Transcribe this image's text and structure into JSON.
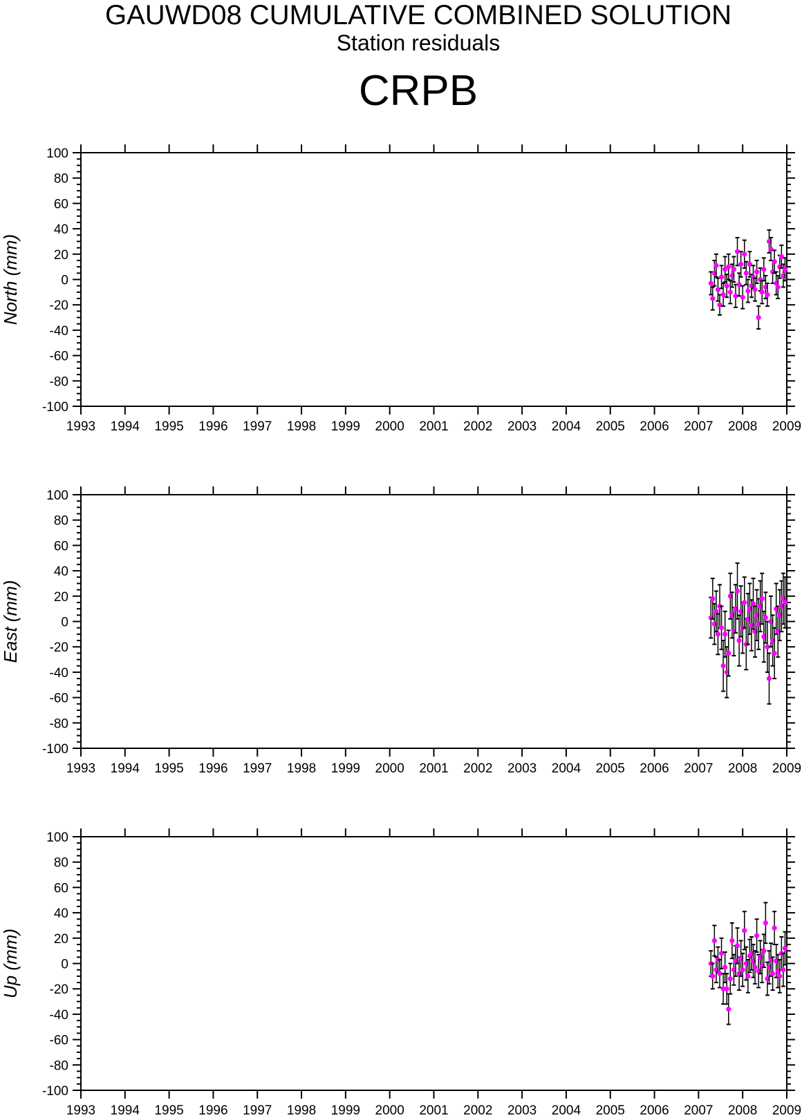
{
  "header": {
    "title": "GAUWD08 CUMULATIVE COMBINED SOLUTION",
    "subtitle": "Station residuals",
    "station": "CRPB"
  },
  "colors": {
    "point": "#ff00ff",
    "errorbar": "#000000",
    "axis": "#000000"
  },
  "chart_data": [
    {
      "type": "scatter",
      "ylabel": "North (mm)",
      "ylim": [
        -100,
        100
      ],
      "xlim": [
        1993,
        2009
      ],
      "xticks": [
        "1993",
        "1994",
        "1995",
        "1996",
        "1997",
        "1998",
        "1999",
        "2000",
        "2001",
        "2002",
        "2003",
        "2004",
        "2005",
        "2006",
        "2007",
        "2008",
        "2009"
      ],
      "yticks": [
        "100",
        "80",
        "60",
        "40",
        "20",
        "0",
        "-20",
        "-40",
        "-60",
        "-80",
        "-100"
      ],
      "grid": false,
      "series": [
        {
          "x": [
            2007.28,
            2007.32,
            2007.36,
            2007.4,
            2007.44,
            2007.48,
            2007.52,
            2007.56,
            2007.6,
            2007.64,
            2007.68,
            2007.72,
            2007.76,
            2007.8,
            2007.84,
            2007.88,
            2007.92,
            2007.96,
            2008.0,
            2008.04,
            2008.08,
            2008.12,
            2008.16,
            2008.2,
            2008.24,
            2008.28,
            2008.32,
            2008.36,
            2008.4,
            2008.44,
            2008.48,
            2008.52,
            2008.56,
            2008.6,
            2008.64,
            2008.68,
            2008.72,
            2008.76,
            2008.8,
            2008.84,
            2008.88,
            2008.92,
            2008.96
          ],
          "y": [
            -3,
            -15,
            5,
            11,
            -8,
            -20,
            2,
            -12,
            8,
            -5,
            10,
            -10,
            3,
            8,
            -13,
            22,
            -4,
            12,
            -14,
            20,
            5,
            -9,
            12,
            -5,
            2,
            -8,
            6,
            -30,
            0,
            -10,
            8,
            -6,
            -12,
            30,
            24,
            6,
            14,
            -3,
            -6,
            10,
            18,
            3,
            8
          ],
          "err": [
            9,
            9,
            10,
            9,
            9,
            8,
            9,
            9,
            10,
            9,
            10,
            9,
            9,
            10,
            9,
            11,
            9,
            10,
            9,
            11,
            9,
            9,
            10,
            9,
            9,
            9,
            9,
            9,
            9,
            9,
            9,
            9,
            9,
            9,
            9,
            9,
            9,
            9,
            9,
            9,
            9,
            9,
            9
          ]
        }
      ]
    },
    {
      "type": "scatter",
      "ylabel": "East (mm)",
      "ylim": [
        -100,
        100
      ],
      "xlim": [
        1993,
        2009
      ],
      "xticks": [
        "1993",
        "1994",
        "1995",
        "1996",
        "1997",
        "1998",
        "1999",
        "2000",
        "2001",
        "2002",
        "2003",
        "2004",
        "2005",
        "2006",
        "2007",
        "2008",
        "2009"
      ],
      "yticks": [
        "100",
        "80",
        "60",
        "40",
        "20",
        "0",
        "-20",
        "-40",
        "-60",
        "-80",
        "-100"
      ],
      "grid": false,
      "series": [
        {
          "x": [
            2007.28,
            2007.32,
            2007.36,
            2007.4,
            2007.44,
            2007.48,
            2007.52,
            2007.56,
            2007.6,
            2007.64,
            2007.68,
            2007.72,
            2007.76,
            2007.8,
            2007.84,
            2007.88,
            2007.92,
            2007.96,
            2008.0,
            2008.04,
            2008.08,
            2008.12,
            2008.16,
            2008.2,
            2008.24,
            2008.28,
            2008.32,
            2008.36,
            2008.4,
            2008.44,
            2008.48,
            2008.52,
            2008.56,
            2008.6,
            2008.64,
            2008.68,
            2008.72,
            2008.76,
            2008.8,
            2008.84,
            2008.88,
            2008.92,
            2008.96
          ],
          "y": [
            3,
            18,
            -2,
            8,
            -10,
            12,
            -5,
            -35,
            -10,
            -40,
            -25,
            20,
            5,
            -8,
            10,
            24,
            -15,
            8,
            -5,
            15,
            -18,
            2,
            10,
            -3,
            14,
            -8,
            5,
            -2,
            12,
            18,
            -12,
            3,
            -20,
            -45,
            0,
            -15,
            -25,
            10,
            -8,
            5,
            12,
            18,
            15
          ],
          "err": [
            16,
            16,
            16,
            16,
            16,
            17,
            17,
            20,
            18,
            20,
            18,
            18,
            18,
            19,
            19,
            22,
            20,
            20,
            20,
            20,
            20,
            20,
            20,
            20,
            20,
            20,
            20,
            20,
            20,
            20,
            20,
            20,
            20,
            20,
            20,
            20,
            20,
            20,
            20,
            20,
            20,
            20,
            20
          ]
        }
      ]
    },
    {
      "type": "scatter",
      "ylabel": "Up (mm)",
      "ylim": [
        -100,
        100
      ],
      "xlim": [
        1993,
        2009
      ],
      "xticks": [
        "1993",
        "1994",
        "1995",
        "1996",
        "1997",
        "1998",
        "1999",
        "2000",
        "2001",
        "2002",
        "2003",
        "2004",
        "2005",
        "2006",
        "2007",
        "2008",
        "2009"
      ],
      "yticks": [
        "100",
        "80",
        "60",
        "40",
        "20",
        "0",
        "-20",
        "-40",
        "-60",
        "-80",
        "-100"
      ],
      "grid": false,
      "series": [
        {
          "x": [
            2007.28,
            2007.32,
            2007.36,
            2007.4,
            2007.44,
            2007.48,
            2007.52,
            2007.56,
            2007.6,
            2007.64,
            2007.68,
            2007.72,
            2007.76,
            2007.8,
            2007.84,
            2007.88,
            2007.92,
            2007.96,
            2008.0,
            2008.04,
            2008.08,
            2008.12,
            2008.16,
            2008.2,
            2008.24,
            2008.28,
            2008.32,
            2008.36,
            2008.4,
            2008.44,
            2008.48,
            2008.52,
            2008.56,
            2008.6,
            2008.64,
            2008.68,
            2008.72,
            2008.76,
            2008.8,
            2008.84,
            2008.88,
            2008.92,
            2008.96
          ],
          "y": [
            0,
            -10,
            18,
            -5,
            3,
            -8,
            8,
            -20,
            -3,
            -20,
            -36,
            -12,
            18,
            -5,
            2,
            14,
            -8,
            4,
            -5,
            26,
            0,
            -10,
            6,
            8,
            2,
            -3,
            22,
            -6,
            5,
            -2,
            10,
            32,
            -12,
            -3,
            3,
            -8,
            28,
            2,
            -6,
            -10,
            8,
            -5,
            12
          ],
          "err": [
            10,
            10,
            12,
            10,
            10,
            11,
            12,
            12,
            12,
            12,
            12,
            12,
            14,
            12,
            12,
            14,
            13,
            14,
            13,
            15,
            13,
            13,
            13,
            13,
            13,
            13,
            13,
            13,
            13,
            13,
            13,
            16,
            13,
            13,
            13,
            13,
            13,
            13,
            13,
            13,
            13,
            13,
            13
          ]
        }
      ]
    }
  ]
}
